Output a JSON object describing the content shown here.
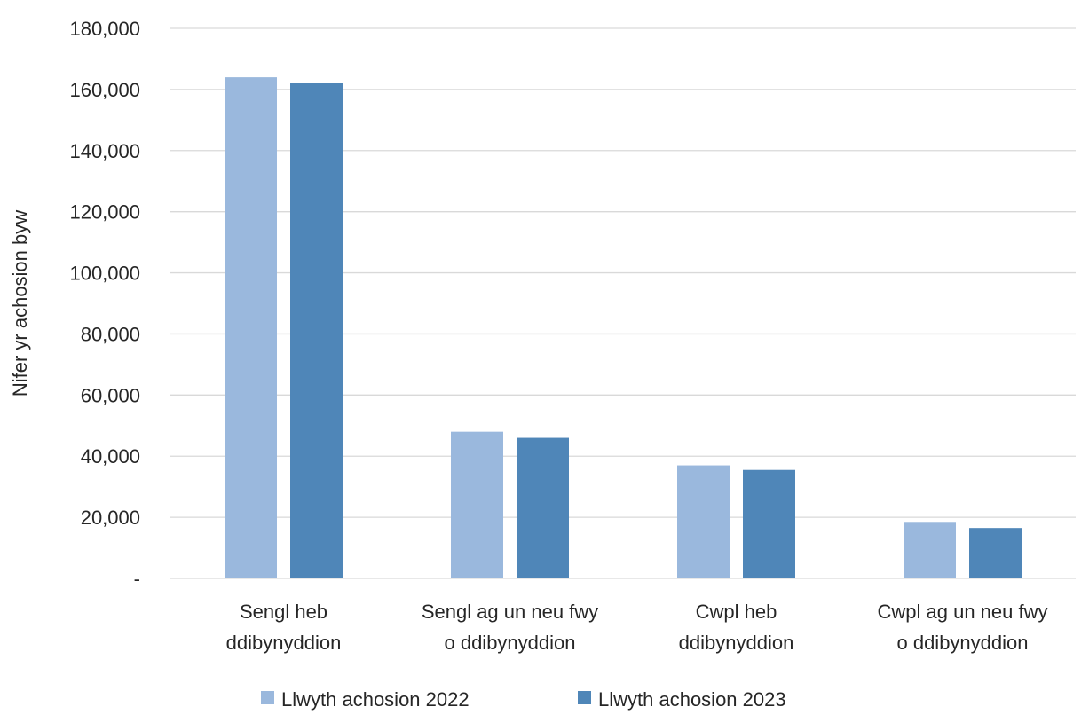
{
  "chart_data": {
    "type": "bar",
    "title": "",
    "ylabel": "Nifer yr achosion byw",
    "xlabel": "",
    "ylim": [
      0,
      180000
    ],
    "yticks": [
      0,
      20000,
      40000,
      60000,
      80000,
      100000,
      120000,
      140000,
      160000,
      180000
    ],
    "ytick_labels": [
      "-",
      "20,000",
      "40,000",
      "60,000",
      "80,000",
      "100,000",
      "120,000",
      "140,000",
      "160,000",
      "180,000"
    ],
    "grid": true,
    "legend_position": "bottom",
    "categories": [
      [
        "Sengl heb",
        "ddibynyddion"
      ],
      [
        "Sengl ag un neu fwy",
        "o ddibynyddion"
      ],
      [
        "Cwpl heb",
        "ddibynyddion"
      ],
      [
        "Cwpl ag un neu fwy",
        "o ddibynyddion"
      ]
    ],
    "series": [
      {
        "name": "Llwyth achosion 2022",
        "color": "#9ab8dd",
        "values": [
          164000,
          48000,
          37000,
          18500
        ]
      },
      {
        "name": "Llwyth achosion 2023",
        "color": "#4f86b8",
        "values": [
          162000,
          46000,
          35500,
          16500
        ]
      }
    ]
  }
}
